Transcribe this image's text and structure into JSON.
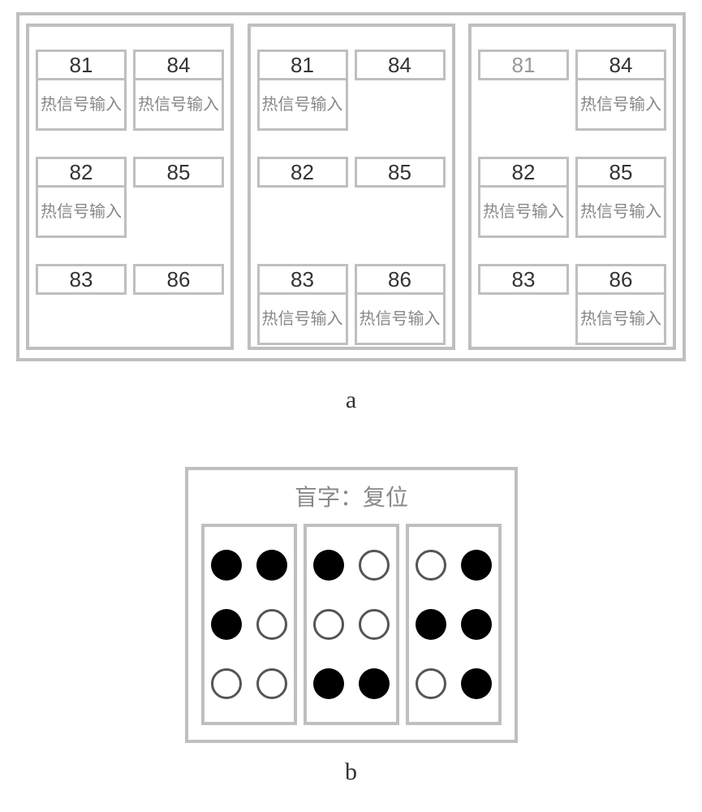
{
  "colors": {
    "border": "#bfbfbf",
    "text_dark": "#333333",
    "text_gray": "#888888",
    "dot_fill": "#000000",
    "dot_stroke": "#555555",
    "background": "#ffffff"
  },
  "signal_label": "热信号\n输入",
  "label_a": "a",
  "label_b": "b",
  "panel_a": {
    "row_tops": [
      28,
      160,
      292
    ],
    "panels": [
      {
        "rows": [
          [
            {
              "num": "81",
              "sig": true
            },
            {
              "num": "84",
              "sig": true
            }
          ],
          [
            {
              "num": "82",
              "sig": true
            },
            {
              "num": "85",
              "sig": false
            }
          ],
          [
            {
              "num": "83",
              "sig": false
            },
            {
              "num": "86",
              "sig": false
            }
          ]
        ]
      },
      {
        "rows": [
          [
            {
              "num": "81",
              "sig": true
            },
            {
              "num": "84",
              "sig": false
            }
          ],
          [
            {
              "num": "82",
              "sig": false
            },
            {
              "num": "85",
              "sig": false
            }
          ],
          [
            {
              "num": "83",
              "sig": true
            },
            {
              "num": "86",
              "sig": true
            }
          ]
        ]
      },
      {
        "rows": [
          [
            {
              "num": "81",
              "sig": false,
              "gray": true
            },
            {
              "num": "84",
              "sig": true
            }
          ],
          [
            {
              "num": "82",
              "sig": true
            },
            {
              "num": "85",
              "sig": true
            }
          ],
          [
            {
              "num": "83",
              "sig": false
            },
            {
              "num": "86",
              "sig": true
            }
          ]
        ]
      }
    ]
  },
  "panel_b": {
    "title": "盲字：复位",
    "cells": [
      [
        [
          true,
          true
        ],
        [
          true,
          false
        ],
        [
          false,
          false
        ]
      ],
      [
        [
          true,
          false
        ],
        [
          false,
          false
        ],
        [
          true,
          true
        ]
      ],
      [
        [
          false,
          true
        ],
        [
          true,
          true
        ],
        [
          false,
          true
        ]
      ]
    ]
  }
}
